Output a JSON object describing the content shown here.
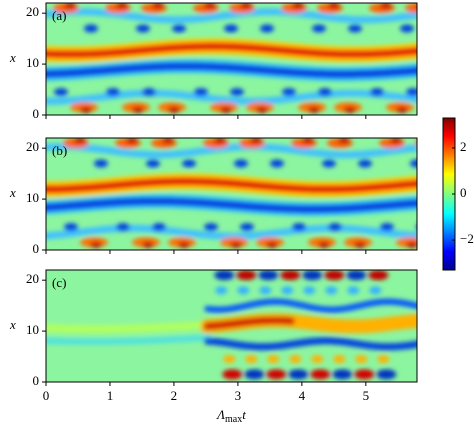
{
  "chart_data": [
    {
      "type": "heatmap",
      "label": "(a)",
      "ylabel": "x",
      "xlim": [
        0,
        5.8
      ],
      "ylim": [
        0,
        22
      ],
      "xticks": [
        0,
        1,
        2,
        3,
        4,
        5
      ],
      "yticks": [
        0,
        10,
        20
      ]
    },
    {
      "type": "heatmap",
      "label": "(b)",
      "ylabel": "x",
      "xlim": [
        0,
        5.8
      ],
      "ylim": [
        0,
        22
      ],
      "xticks": [
        0,
        1,
        2,
        3,
        4,
        5
      ],
      "yticks": [
        0,
        10,
        20
      ]
    },
    {
      "type": "heatmap",
      "label": "(c)",
      "ylabel": "x",
      "xlim": [
        0,
        5.8
      ],
      "ylim": [
        0,
        22
      ],
      "xticks": [
        0,
        1,
        2,
        3,
        4,
        5
      ],
      "yticks": [
        0,
        10,
        20
      ],
      "xlabel": "Λ",
      "xlabel_sub": "max",
      "xlabel_tail": "t",
      "colorbar": {
        "lim": [
          -3.3,
          3.3
        ],
        "ticks": [
          {
            "value": -2,
            "label": "−2"
          },
          0,
          2
        ]
      }
    }
  ]
}
